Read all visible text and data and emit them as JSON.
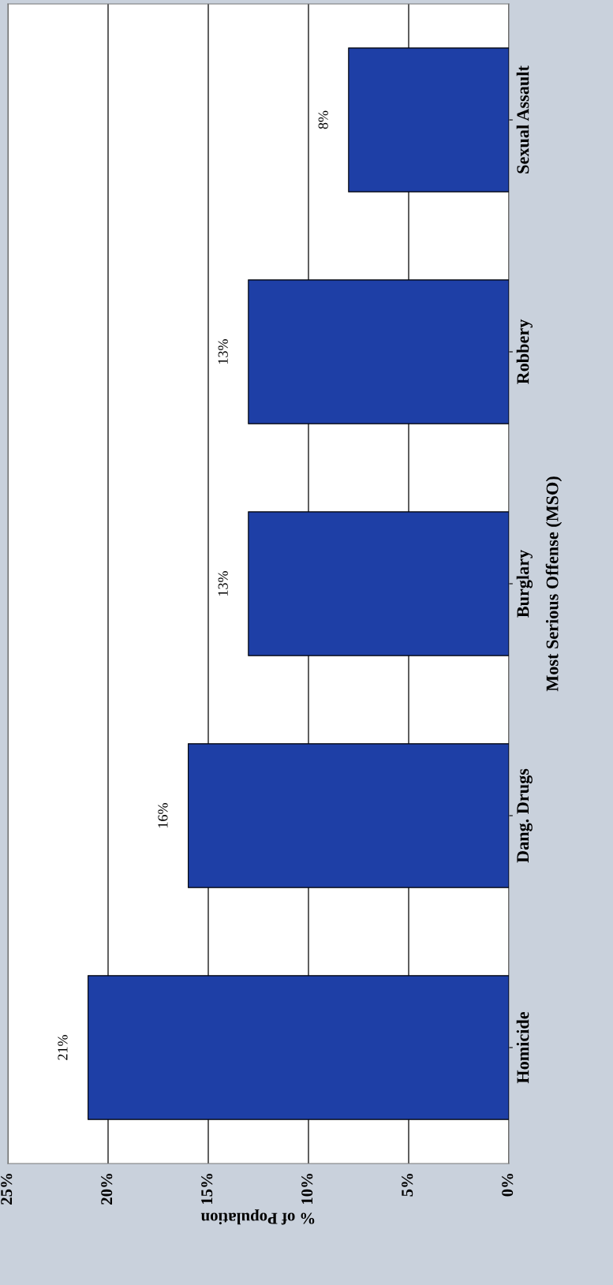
{
  "chart_data": {
    "type": "bar",
    "orientation": "horizontal",
    "categories": [
      "Sexual Assault",
      "Robbery",
      "Burglary",
      "Dang. Drugs",
      "Homicide"
    ],
    "values": [
      8,
      13,
      13,
      16,
      21
    ],
    "color": "#1e3fa6",
    "value_labels": [
      "8%",
      "13%",
      "13%",
      "16%",
      "21%"
    ],
    "xlabel": "% of Population",
    "ylabel": "Most Serious Offense (MSO)",
    "xlim": [
      25,
      0
    ],
    "xticks": [
      {
        "value": 0,
        "label": "0%"
      },
      {
        "value": 5,
        "label": "5%"
      },
      {
        "value": 10,
        "label": "10%"
      },
      {
        "value": 15,
        "label": "15%"
      },
      {
        "value": 20,
        "label": "20%"
      },
      {
        "value": 25,
        "label": "25%"
      }
    ],
    "grid": "x"
  }
}
